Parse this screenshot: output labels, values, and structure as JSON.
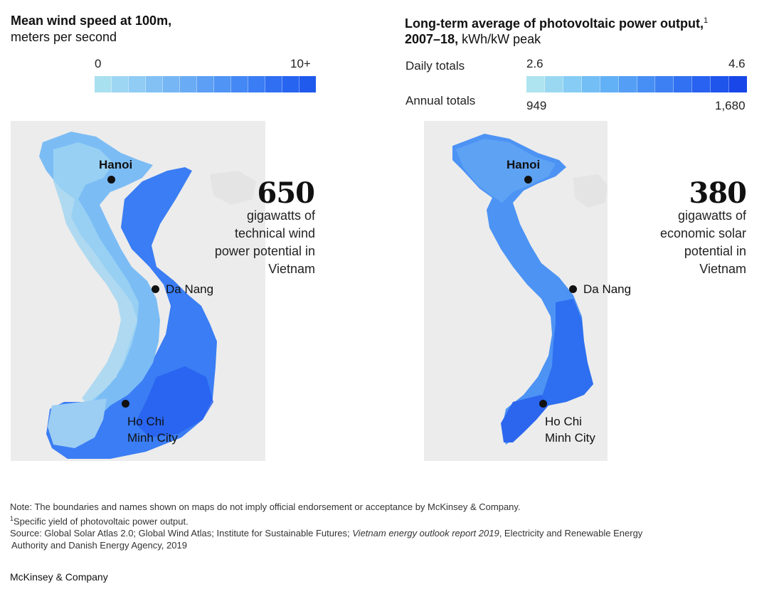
{
  "wind": {
    "title": "Mean wind speed at 100m,",
    "subtitle": "meters per second",
    "scale_min": "0",
    "scale_max": "10+",
    "colors": [
      "#a9e0f0",
      "#9dd6f3",
      "#90ccf4",
      "#83c1f5",
      "#76b6f5",
      "#69abf5",
      "#5c9ff5",
      "#5094f5",
      "#4488f5",
      "#3a7df4",
      "#306ff2",
      "#2764f0",
      "#1f5aec"
    ],
    "big_number": "650",
    "desc_lines": [
      "gigawatts of",
      "technical wind",
      "power potential in",
      "Vietnam"
    ]
  },
  "solar": {
    "title_bold": "Long-term average of photovoltaic power output,",
    "title_sup": "1",
    "title_line2_bold": "2007–18,",
    "title_line2_rest": " kWh/kW peak",
    "row1_label": "Daily totals",
    "row2_label": "Annual  totals",
    "daily_min": "2.6",
    "daily_max": "4.6",
    "annual_min": "949",
    "annual_max": "1,680",
    "colors": [
      "#aee4f0",
      "#9ad8f2",
      "#86ccf4",
      "#72bef5",
      "#62b0f5",
      "#549ff5",
      "#488ff5",
      "#3d80f4",
      "#3271f2",
      "#2962f0",
      "#2055ec",
      "#1846e8"
    ],
    "big_number": "380",
    "desc_lines": [
      "gigawatts of",
      "economic solar",
      "potential in",
      "Vietnam"
    ]
  },
  "cities": {
    "hanoi": "Hanoi",
    "danang": "Da Nang",
    "hcmc_1": "Ho Chi",
    "hcmc_2": "Minh City"
  },
  "notes": {
    "line1": "Note: The boundaries and names shown on maps do not imply official endorsement or acceptance by McKinsey & Company.",
    "line2_sup": "1",
    "line2": "Specific yield of photovoltaic power output.",
    "line3_a": "Source: Global Solar Atlas 2.0; Global Wind Atlas; Institute for Sustainable Futures; ",
    "line3_italic": "Vietnam energy outlook report 2019",
    "line3_b": ", Electricity and Renewable Energy",
    "line4": "Authority and Danish Energy Agency, 2019"
  },
  "brand": "McKinsey & Company"
}
